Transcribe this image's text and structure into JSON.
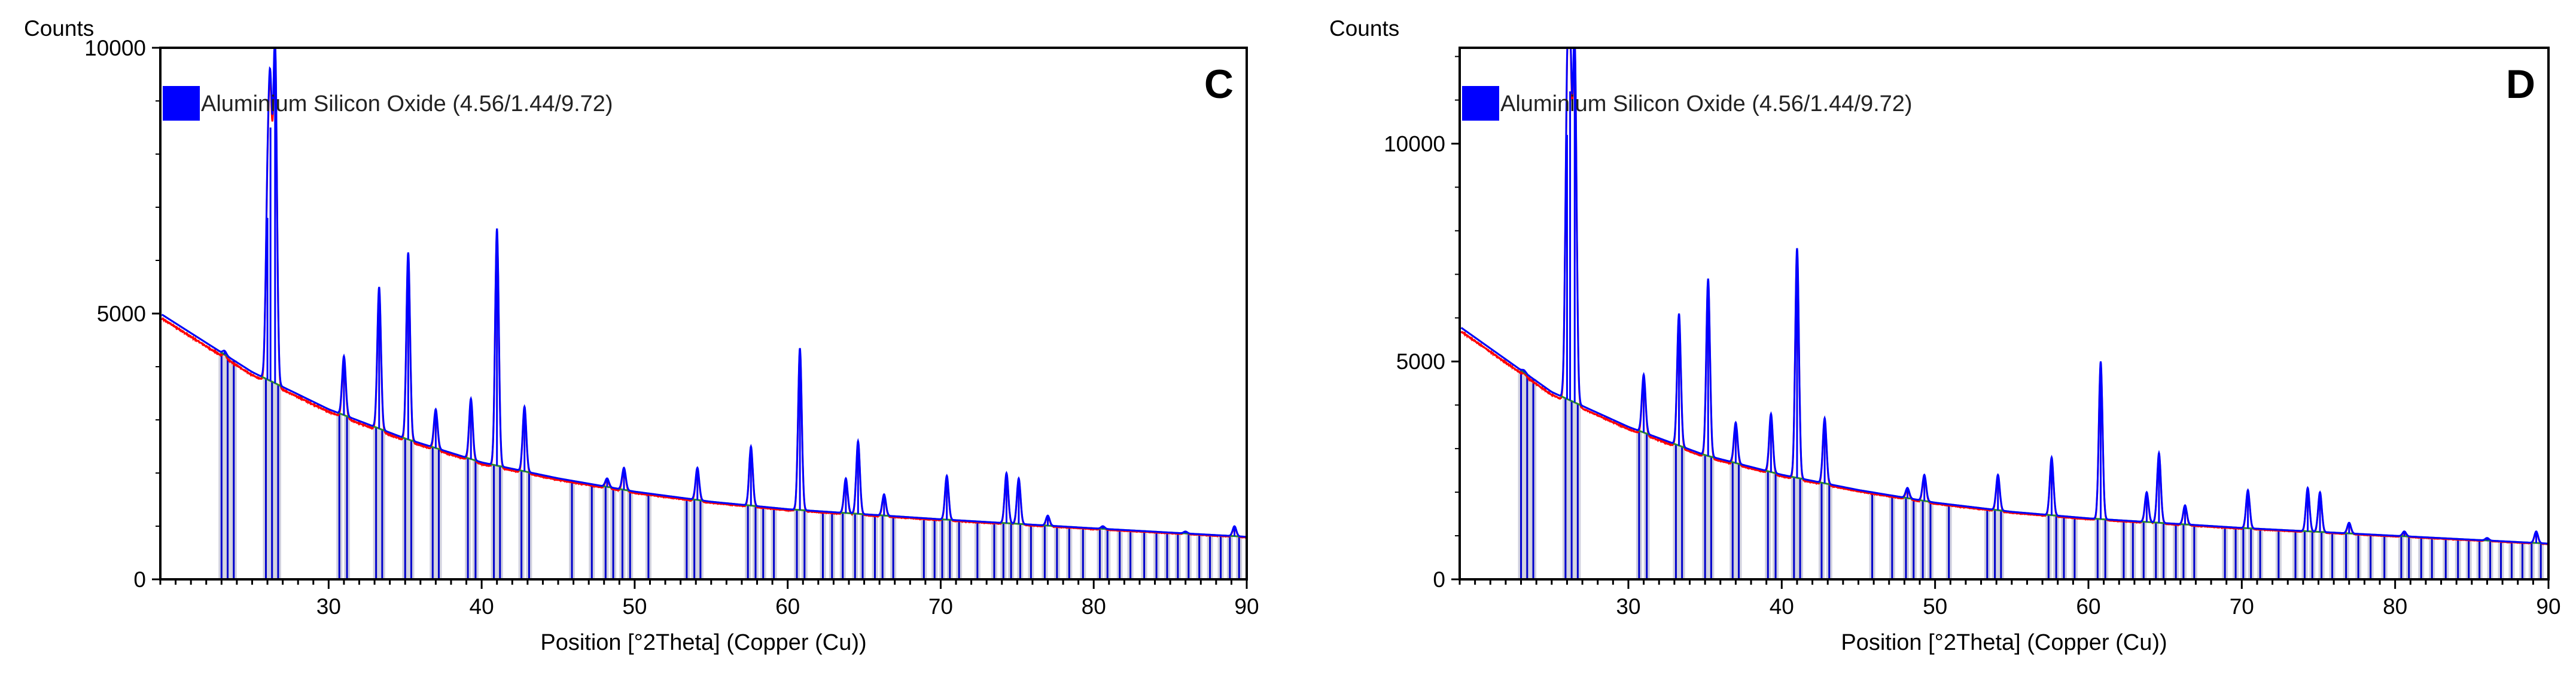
{
  "chart_data": [
    {
      "type": "line",
      "panel_label": "C",
      "ylabel": "Counts",
      "xlabel": "Position [°2Theta] (Copper (Cu))",
      "xlim": [
        19,
        90
      ],
      "ylim": [
        0,
        10000
      ],
      "xticks": [
        30,
        40,
        50,
        60,
        70,
        80,
        90
      ],
      "yticks": [
        0,
        5000,
        10000
      ],
      "legend": {
        "label": "Aluminium Silicon Oxide (4.56/1.44/9.72)",
        "color": "#0000ff",
        "position": "top-left"
      },
      "colors": {
        "observed": "#ff0000",
        "calculated": "#0000ff",
        "background": "#2a8a2a",
        "reference_sticks": "#0000cc",
        "stick_fill": "#c8c8d8"
      },
      "background_curve": {
        "x": [
          19,
          25,
          30,
          35,
          40,
          45,
          50,
          55,
          60,
          70,
          80,
          90
        ],
        "y": [
          5000,
          3900,
          3200,
          2650,
          2200,
          1900,
          1650,
          1460,
          1320,
          1130,
          960,
          800
        ]
      },
      "peaks": [
        {
          "x": 23.2,
          "top": 4300
        },
        {
          "x": 26.0,
          "top": 6800
        },
        {
          "x": 26.2,
          "top": 8500
        },
        {
          "x": 26.5,
          "top": 10000
        },
        {
          "x": 31.0,
          "top": 4200
        },
        {
          "x": 33.3,
          "top": 5500
        },
        {
          "x": 35.2,
          "top": 6150
        },
        {
          "x": 37.0,
          "top": 3200
        },
        {
          "x": 39.3,
          "top": 3400
        },
        {
          "x": 41.0,
          "top": 6600
        },
        {
          "x": 42.8,
          "top": 3250
        },
        {
          "x": 48.2,
          "top": 1900
        },
        {
          "x": 49.3,
          "top": 2100
        },
        {
          "x": 54.1,
          "top": 2100
        },
        {
          "x": 57.6,
          "top": 2500
        },
        {
          "x": 60.8,
          "top": 4350
        },
        {
          "x": 63.8,
          "top": 1900
        },
        {
          "x": 64.6,
          "top": 2600
        },
        {
          "x": 66.3,
          "top": 1600
        },
        {
          "x": 70.4,
          "top": 1950
        },
        {
          "x": 74.3,
          "top": 2000
        },
        {
          "x": 75.1,
          "top": 1900
        },
        {
          "x": 77.0,
          "top": 1200
        },
        {
          "x": 80.6,
          "top": 1000
        },
        {
          "x": 86.0,
          "top": 900
        },
        {
          "x": 89.2,
          "top": 1000
        }
      ],
      "reference_sticks": [
        23.0,
        23.4,
        23.8,
        25.9,
        26.3,
        26.7,
        30.7,
        31.2,
        33.1,
        33.5,
        35.0,
        35.4,
        36.8,
        37.2,
        39.1,
        39.6,
        40.8,
        41.2,
        42.6,
        43.1,
        45.9,
        47.2,
        48.1,
        48.6,
        49.2,
        49.7,
        50.9,
        53.4,
        53.9,
        54.3,
        57.4,
        57.9,
        58.4,
        59.1,
        60.6,
        61.1,
        62.3,
        62.9,
        63.6,
        64.4,
        64.9,
        65.7,
        66.2,
        66.9,
        68.9,
        69.6,
        70.1,
        70.6,
        71.2,
        72.4,
        73.5,
        74.1,
        74.6,
        75.2,
        75.9,
        76.8,
        77.6,
        78.4,
        79.3,
        80.4,
        80.9,
        81.7,
        82.4,
        83.3,
        84.1,
        84.8,
        85.5,
        86.2,
        86.9,
        87.6,
        88.3,
        88.9,
        89.5
      ]
    },
    {
      "type": "line",
      "panel_label": "D",
      "ylabel": "Counts",
      "xlabel": "Position [°2Theta] (Copper (Cu))",
      "xlim": [
        19,
        90
      ],
      "ylim": [
        0,
        12200
      ],
      "xticks": [
        30,
        40,
        50,
        60,
        70,
        80,
        90
      ],
      "yticks": [
        0,
        5000,
        10000
      ],
      "legend": {
        "label": "Aluminium Silicon Oxide (4.56/1.44/9.72)",
        "color": "#0000ff",
        "position": "top-left"
      },
      "colors": {
        "observed": "#ff0000",
        "calculated": "#0000ff",
        "background": "#2a8a2a",
        "reference_sticks": "#0000cc",
        "stick_fill": "#c8c8d8"
      },
      "background_curve": {
        "x": [
          19,
          25,
          30,
          35,
          40,
          45,
          50,
          55,
          60,
          70,
          80,
          90
        ],
        "y": [
          5800,
          4300,
          3500,
          2850,
          2400,
          2050,
          1760,
          1550,
          1400,
          1180,
          1000,
          820
        ]
      },
      "peaks": [
        {
          "x": 23.2,
          "top": 4800
        },
        {
          "x": 26.0,
          "top": 10200
        },
        {
          "x": 26.2,
          "top": 11200
        },
        {
          "x": 26.5,
          "top": 12200
        },
        {
          "x": 31.0,
          "top": 4700
        },
        {
          "x": 33.3,
          "top": 6100
        },
        {
          "x": 35.2,
          "top": 6900
        },
        {
          "x": 37.0,
          "top": 3600
        },
        {
          "x": 39.3,
          "top": 3800
        },
        {
          "x": 41.0,
          "top": 7600
        },
        {
          "x": 42.8,
          "top": 3700
        },
        {
          "x": 48.2,
          "top": 2100
        },
        {
          "x": 49.3,
          "top": 2400
        },
        {
          "x": 54.1,
          "top": 2400
        },
        {
          "x": 57.6,
          "top": 2800
        },
        {
          "x": 60.8,
          "top": 5000
        },
        {
          "x": 63.8,
          "top": 2000
        },
        {
          "x": 64.6,
          "top": 2900
        },
        {
          "x": 66.3,
          "top": 1700
        },
        {
          "x": 70.4,
          "top": 2050
        },
        {
          "x": 74.3,
          "top": 2100
        },
        {
          "x": 75.1,
          "top": 2000
        },
        {
          "x": 77.0,
          "top": 1300
        },
        {
          "x": 80.6,
          "top": 1100
        },
        {
          "x": 86.0,
          "top": 950
        },
        {
          "x": 89.2,
          "top": 1100
        }
      ],
      "reference_sticks": [
        23.0,
        23.4,
        23.8,
        25.9,
        26.3,
        26.7,
        30.7,
        31.2,
        33.1,
        33.5,
        35.0,
        35.4,
        36.8,
        37.2,
        39.1,
        39.6,
        40.8,
        41.2,
        42.6,
        43.1,
        45.9,
        47.2,
        48.1,
        48.6,
        49.2,
        49.7,
        50.9,
        53.4,
        53.9,
        54.3,
        57.4,
        57.9,
        58.4,
        59.1,
        60.6,
        61.1,
        62.3,
        62.9,
        63.6,
        64.4,
        64.9,
        65.7,
        66.2,
        66.9,
        68.9,
        69.6,
        70.1,
        70.6,
        71.2,
        72.4,
        73.5,
        74.1,
        74.6,
        75.2,
        75.9,
        76.8,
        77.6,
        78.4,
        79.3,
        80.4,
        80.9,
        81.7,
        82.4,
        83.3,
        84.1,
        84.8,
        85.5,
        86.2,
        86.9,
        87.6,
        88.3,
        88.9,
        89.5
      ]
    }
  ]
}
